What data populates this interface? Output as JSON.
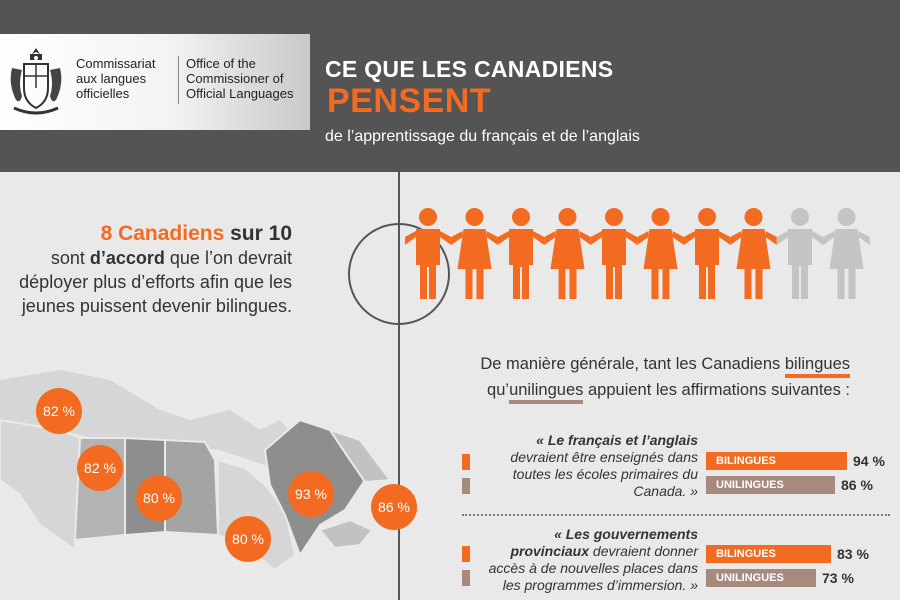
{
  "header": {
    "org_fr": "Commissariat aux langues officielles",
    "org_en": "Office of the Commissioner of Official Languages",
    "title_line1": "CE QUE LES CANADIENS",
    "title_line2": "PENSENT",
    "subtitle": "de l’apprentissage du français et de l’anglais"
  },
  "intro": {
    "highlight_number": "8 Canadiens",
    "highlight_rest": "sur 10",
    "text_before_bold": "sont",
    "text_bold": "d’accord",
    "text_after_bold": "que l’on devrait déployer plus d’efforts afin que les jeunes puissent devenir bilingues."
  },
  "people": {
    "total": 10,
    "highlighted": 8,
    "highlight_color": "#f26b21",
    "other_color": "#c4c4c4"
  },
  "map": {
    "badges": [
      "82 %",
      "82 %",
      "80 %",
      "93 %",
      "86 %",
      "80 %"
    ],
    "colors": {
      "light": "#d6d6d6",
      "mid": "#b3b3b3",
      "dark": "#8e8e8e",
      "badge": "#f26b21"
    }
  },
  "question": {
    "part1": "De manière générale, tant les Canadiens",
    "word1": "bilingues",
    "part2": "qu’",
    "word2": "unilingues",
    "part3": "appuient les affirmations suivantes :"
  },
  "statements": [
    {
      "bold": "« Le français et l’anglais",
      "rest": "devraient être enseignés dans toutes les écoles primaires du Canada. »",
      "bars": [
        {
          "label": "BILINGUES",
          "value": 94,
          "display": "94 %",
          "color": "#f26b21"
        },
        {
          "label": "UNILINGUES",
          "value": 86,
          "display": "86 %",
          "color": "#a68a7e"
        }
      ]
    },
    {
      "bold": "« Les gouvernements provinciaux",
      "rest": "devraient donner accès à de nouvelles places dans les programmes d’immersion. »",
      "bars": [
        {
          "label": "BILINGUES",
          "value": 83,
          "display": "83 %",
          "color": "#f26b21"
        },
        {
          "label": "UNILINGUES",
          "value": 73,
          "display": "73 %",
          "color": "#a68a7e"
        }
      ]
    }
  ]
}
